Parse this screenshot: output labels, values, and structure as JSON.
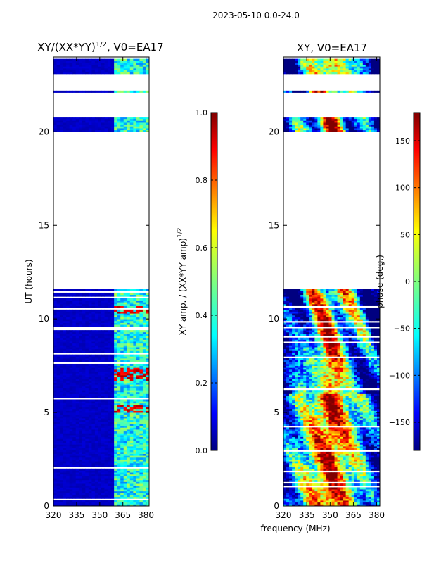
{
  "figure_title": "2023-05-10 0.0-24.0",
  "chart_data": [
    {
      "type": "heatmap",
      "title_main": "XY/(XX*YY)",
      "title_sup": "1/2",
      "title_suffix": ", V0=EA17",
      "xlabel": "frequency (MHz)",
      "ylabel": "UT (hours)",
      "xlim": [
        320,
        382
      ],
      "ylim": [
        0,
        24
      ],
      "xticks": [
        320,
        335,
        350,
        365,
        380
      ],
      "yticks": [
        0,
        5,
        10,
        15,
        20
      ],
      "colorbar": {
        "label_main": "XY amp. / (XX*YY amp)",
        "label_sup": "1/2",
        "range": [
          0.0,
          1.0
        ],
        "ticks": [
          "0.0",
          "0.2",
          "0.4",
          "0.6",
          "0.8",
          "1.0"
        ],
        "colormap": "jet"
      },
      "data_time_ranges_hours": [
        [
          0.0,
          11.6
        ],
        [
          20.0,
          20.8
        ],
        [
          22.15,
          22.25
        ],
        [
          23.15,
          23.9
        ]
      ],
      "signal_band_mhz": [
        359,
        382
      ],
      "background_value": 0.05,
      "signal_band_value": 0.4,
      "high_value_times_hours": [
        5.2,
        6.9,
        7.2,
        10.5
      ]
    },
    {
      "type": "heatmap",
      "title": "XY, V0=EA17",
      "xlabel": "frequency (MHz)",
      "ylabel": "",
      "xlim": [
        320,
        382
      ],
      "ylim": [
        0,
        24
      ],
      "xticks": [
        320,
        335,
        350,
        365,
        380
      ],
      "yticks": [
        0,
        5,
        10,
        15,
        20
      ],
      "colorbar": {
        "label": "phase (deg.)",
        "range": [
          -180,
          180
        ],
        "ticks": [
          "−150",
          "−100",
          "−50",
          "0",
          "50",
          "100",
          "150"
        ],
        "colormap": "jet"
      },
      "data_time_ranges_hours": [
        [
          0.0,
          11.6
        ],
        [
          20.0,
          20.8
        ],
        [
          22.15,
          22.25
        ],
        [
          23.15,
          23.9
        ]
      ],
      "phase_center_mhz": 350,
      "phase_center_value_deg": 150,
      "phase_edge_value_deg": -140
    }
  ]
}
